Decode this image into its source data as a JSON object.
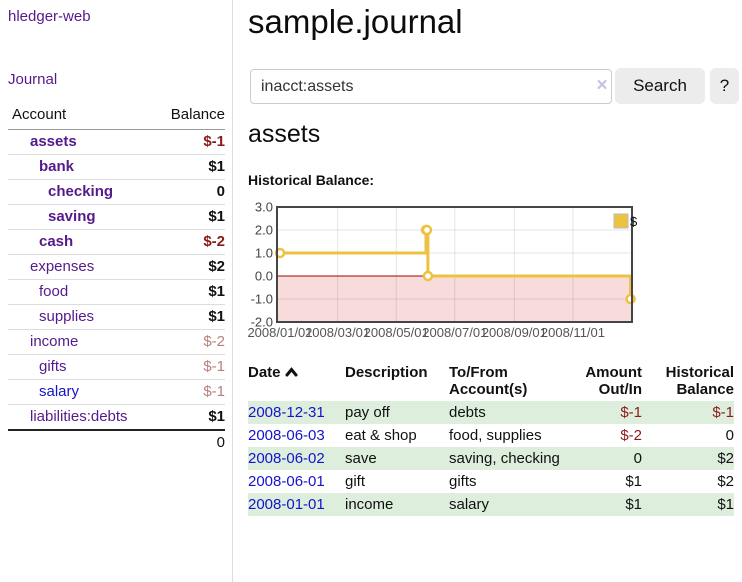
{
  "colors": {
    "link_purple": "#551a8b",
    "link_blue": "#1414cc",
    "negative_strong": "#8b1a1a",
    "negative_muted": "#b87f7f",
    "row_stripe_green": "#ddeedd",
    "button_bg": "#ececec",
    "chart_series_gold": "#EDC240",
    "chart_negative_fill": "#f8dcdc",
    "chart_zero_line": "#a40000"
  },
  "sidebar": {
    "app_title": "hledger-web",
    "journal_link": "Journal",
    "accounts": {
      "header_account": "Account",
      "header_balance": "Balance",
      "rows": [
        {
          "name": "assets",
          "indent": 1,
          "bold": true,
          "blue": false,
          "balance": "$-1",
          "style": "neg-strong"
        },
        {
          "name": "bank",
          "indent": 2,
          "bold": true,
          "blue": false,
          "balance": "$1",
          "style": "pos"
        },
        {
          "name": "checking",
          "indent": 3,
          "bold": true,
          "blue": false,
          "balance": "0",
          "style": "pos"
        },
        {
          "name": "saving",
          "indent": 3,
          "bold": true,
          "blue": false,
          "balance": "$1",
          "style": "pos"
        },
        {
          "name": "cash",
          "indent": 2,
          "bold": true,
          "blue": false,
          "balance": "$-2",
          "style": "neg-strong"
        },
        {
          "name": "expenses",
          "indent": 1,
          "bold": false,
          "blue": false,
          "balance": "$2",
          "style": "pos"
        },
        {
          "name": "food",
          "indent": 2,
          "bold": false,
          "blue": false,
          "balance": "$1",
          "style": "pos"
        },
        {
          "name": "supplies",
          "indent": 2,
          "bold": false,
          "blue": false,
          "balance": "$1",
          "style": "pos"
        },
        {
          "name": "income",
          "indent": 1,
          "bold": false,
          "blue": false,
          "balance": "$-2",
          "style": "neg-muted"
        },
        {
          "name": "gifts",
          "indent": 2,
          "bold": false,
          "blue": false,
          "balance": "$-1",
          "style": "neg-muted"
        },
        {
          "name": "salary",
          "indent": 2,
          "bold": false,
          "blue": true,
          "balance": "$-1",
          "style": "neg-muted"
        },
        {
          "name": "liabilities:debts",
          "indent": 1,
          "bold": false,
          "blue": false,
          "balance": "$1",
          "style": "pos"
        }
      ],
      "total": "0"
    }
  },
  "main": {
    "title": "sample.journal",
    "search": {
      "value": "inacct:assets",
      "clear_icon": "×",
      "button_label": "Search",
      "help_label": "?"
    },
    "account_heading": "assets",
    "chart_label": "Historical Balance:"
  },
  "register": {
    "headers": {
      "date": "Date",
      "description": "Description",
      "accounts": "To/From Account(s)",
      "amount": "Amount Out/In",
      "balance": "Historical Balance"
    },
    "rows": [
      {
        "date": "2008-12-31",
        "description": "pay off",
        "accounts": "debts",
        "amount": "$-1",
        "amount_neg": true,
        "balance": "$-1",
        "balance_neg": true
      },
      {
        "date": "2008-06-03",
        "description": "eat & shop",
        "accounts": "food, supplies",
        "amount": "$-2",
        "amount_neg": true,
        "balance": "0",
        "balance_neg": false
      },
      {
        "date": "2008-06-02",
        "description": "save",
        "accounts": "saving, checking",
        "amount": "0",
        "amount_neg": false,
        "balance": "$2",
        "balance_neg": false
      },
      {
        "date": "2008-06-01",
        "description": "gift",
        "accounts": "gifts",
        "amount": "$1",
        "amount_neg": false,
        "balance": "$2",
        "balance_neg": false
      },
      {
        "date": "2008-01-01",
        "description": "income",
        "accounts": "salary",
        "amount": "$1",
        "amount_neg": false,
        "balance": "$1",
        "balance_neg": false
      }
    ]
  },
  "chart_data": {
    "type": "line",
    "step": true,
    "title": "Historical Balance:",
    "x_type": "date",
    "series": [
      {
        "name": "$",
        "color": "#EDC240",
        "points": [
          {
            "date": "2008/01/01",
            "value": 1
          },
          {
            "date": "2008/06/01",
            "value": 2
          },
          {
            "date": "2008/06/02",
            "value": 2
          },
          {
            "date": "2008/06/03",
            "value": 0
          },
          {
            "date": "2008/12/31",
            "value": -1
          }
        ]
      }
    ],
    "xticks": [
      "2008/01/01",
      "2008/03/01",
      "2008/05/01",
      "2008/07/01",
      "2008/09/01",
      "2008/11/01"
    ],
    "yticks": [
      "3.0",
      "2.0",
      "1.0",
      "0.0",
      "-1.0",
      "-2.0"
    ],
    "ylim": [
      -2,
      3
    ],
    "grid": true,
    "negative_region_shaded": true,
    "legend": {
      "label": "$",
      "position": "top-right"
    }
  }
}
